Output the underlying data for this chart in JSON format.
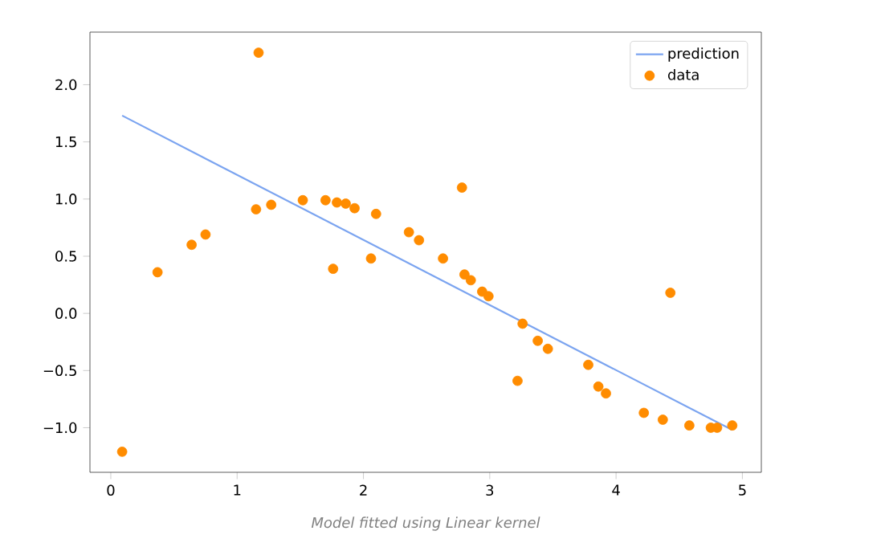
{
  "chart_data": {
    "type": "scatter",
    "annotations": [
      "Model fitted using Linear kernel"
    ],
    "xlim": [
      -0.165,
      5.15
    ],
    "ylim": [
      -1.39,
      2.46
    ],
    "xticks": [
      0,
      1,
      2,
      3,
      4,
      5
    ],
    "yticks": [
      {
        "value": -1.0,
        "label": "−1.0"
      },
      {
        "value": -0.5,
        "label": "−0.5"
      },
      {
        "value": 0.0,
        "label": "0.0"
      },
      {
        "value": 0.5,
        "label": "0.5"
      },
      {
        "value": 1.0,
        "label": "1.0"
      },
      {
        "value": 1.5,
        "label": "1.5"
      },
      {
        "value": 2.0,
        "label": "2.0"
      }
    ],
    "legend": "top right",
    "grid": false,
    "series": [
      {
        "name": "prediction",
        "type": "line",
        "color": "#7ba4f0",
        "line_style": "solid",
        "marker": "none",
        "x": [
          0.09,
          4.92
        ],
        "values": [
          1.73,
          -1.02
        ]
      },
      {
        "name": "data",
        "color": "#ff8c00",
        "marker": "circle",
        "x": [
          0.09,
          0.37,
          0.64,
          0.75,
          1.17,
          1.15,
          1.27,
          1.52,
          1.7,
          1.76,
          1.79,
          1.86,
          1.93,
          2.06,
          2.1,
          2.36,
          2.44,
          2.63,
          2.78,
          2.8,
          2.85,
          2.94,
          2.99,
          3.22,
          3.26,
          3.38,
          3.46,
          3.78,
          3.86,
          3.92,
          4.22,
          4.37,
          4.43,
          4.58,
          4.75,
          4.8,
          4.92
        ],
        "values": [
          -1.21,
          0.36,
          0.6,
          0.69,
          2.28,
          0.91,
          0.95,
          0.99,
          0.99,
          0.39,
          0.97,
          0.96,
          0.92,
          0.48,
          0.87,
          0.71,
          0.64,
          0.48,
          1.1,
          0.34,
          0.29,
          0.19,
          0.15,
          -0.59,
          -0.09,
          -0.24,
          -0.31,
          -0.45,
          -0.64,
          -0.7,
          -0.87,
          -0.93,
          0.18,
          -0.98,
          -1.0,
          -1.0,
          -0.98
        ]
      }
    ]
  }
}
